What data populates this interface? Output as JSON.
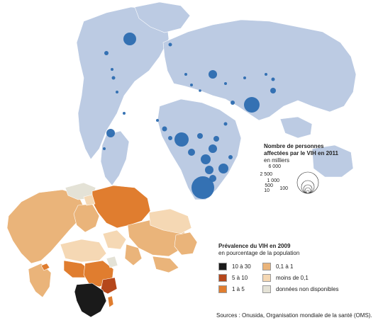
{
  "colors": {
    "land_light": "#bccbe3",
    "bubble": "#2c6bb0",
    "prev_10_30": "#1a1a1a",
    "prev_5_10": "#b5471b",
    "prev_1_5": "#e07d2f",
    "prev_01_1": "#eab47a",
    "prev_lt01": "#f5d8b4",
    "prev_nodata": "#e4e2d6"
  },
  "bubble_legend": {
    "title_line1": "Nombre de personnes",
    "title_line2": "affectées par le VIH en 2011",
    "unit": "en milliers",
    "values": [
      "6 000",
      "2 500",
      "1 000",
      "500",
      "100",
      "10"
    ]
  },
  "prevalence_legend": {
    "title": "Prévalence du VIH en 2009",
    "subtitle": "en pourcentage de la population",
    "items": [
      {
        "label": "10 à 30",
        "color": "#1a1a1a"
      },
      {
        "label": "5 à 10",
        "color": "#b5471b"
      },
      {
        "label": "1 à 5",
        "color": "#e07d2f"
      },
      {
        "label": "0,1 à 1",
        "color": "#eab47a"
      },
      {
        "label": "moins de 0,1",
        "color": "#f5d8b4"
      },
      {
        "label": "données non disponibles",
        "color": "#e4e2d6"
      }
    ]
  },
  "sources": "Sources : Onusida, Organisation mondiale de la santé (OMS)."
}
